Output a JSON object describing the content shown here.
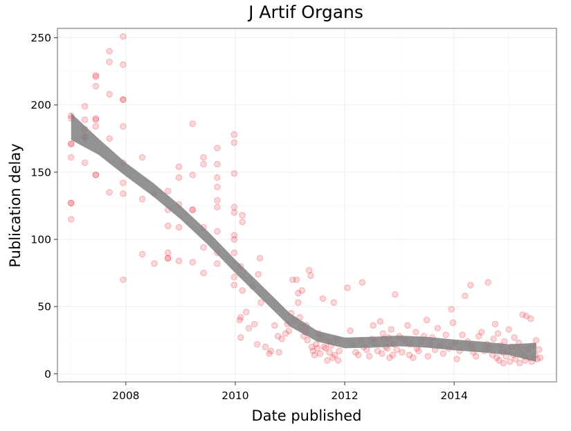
{
  "chart_data": {
    "type": "scatter",
    "title": "J Artif Organs",
    "xlabel": "Date published",
    "ylabel": "Publication delay",
    "xlim": [
      2006.75,
      2015.87
    ],
    "ylim": [
      -6,
      257
    ],
    "x_ticks": [
      2008,
      2010,
      2012,
      2014
    ],
    "y_ticks": [
      0,
      50,
      100,
      150,
      200,
      250
    ],
    "grid": true,
    "point_color": "#e8202a",
    "point_opacity": 0.18,
    "smooth_color": "#7f7f7f",
    "series": [
      {
        "points": [
          [
            2007.0,
            192
          ],
          [
            2007.0,
            190
          ],
          [
            2007.0,
            171
          ],
          [
            2007.0,
            171
          ],
          [
            2007.0,
            161
          ],
          [
            2007.0,
            127
          ],
          [
            2007.0,
            127
          ],
          [
            2007.0,
            115
          ],
          [
            2007.25,
            199
          ],
          [
            2007.25,
            189
          ],
          [
            2007.25,
            182
          ],
          [
            2007.25,
            176
          ],
          [
            2007.25,
            176
          ],
          [
            2007.25,
            157
          ],
          [
            2007.45,
            222
          ],
          [
            2007.45,
            221
          ],
          [
            2007.45,
            214
          ],
          [
            2007.45,
            190
          ],
          [
            2007.45,
            189
          ],
          [
            2007.45,
            184
          ],
          [
            2007.45,
            148
          ],
          [
            2007.45,
            148
          ],
          [
            2007.7,
            240
          ],
          [
            2007.7,
            232
          ],
          [
            2007.7,
            208
          ],
          [
            2007.7,
            175
          ],
          [
            2007.7,
            135
          ],
          [
            2007.95,
            251
          ],
          [
            2007.95,
            230
          ],
          [
            2007.95,
            204
          ],
          [
            2007.95,
            204
          ],
          [
            2007.95,
            184
          ],
          [
            2007.95,
            157
          ],
          [
            2007.95,
            142
          ],
          [
            2007.95,
            134
          ],
          [
            2007.95,
            70
          ],
          [
            2008.3,
            161
          ],
          [
            2008.3,
            130
          ],
          [
            2008.3,
            89
          ],
          [
            2008.52,
            134
          ],
          [
            2008.52,
            82
          ],
          [
            2008.77,
            136
          ],
          [
            2008.77,
            122
          ],
          [
            2008.77,
            110
          ],
          [
            2008.77,
            90
          ],
          [
            2008.77,
            86
          ],
          [
            2008.77,
            86
          ],
          [
            2008.97,
            154
          ],
          [
            2008.97,
            146
          ],
          [
            2008.97,
            126
          ],
          [
            2008.97,
            109
          ],
          [
            2008.97,
            84
          ],
          [
            2009.22,
            186
          ],
          [
            2009.22,
            148
          ],
          [
            2009.22,
            122
          ],
          [
            2009.22,
            122
          ],
          [
            2009.22,
            83
          ],
          [
            2009.42,
            161
          ],
          [
            2009.42,
            156
          ],
          [
            2009.42,
            109
          ],
          [
            2009.42,
            94
          ],
          [
            2009.42,
            75
          ],
          [
            2009.67,
            168
          ],
          [
            2009.67,
            156
          ],
          [
            2009.67,
            146
          ],
          [
            2009.67,
            139
          ],
          [
            2009.67,
            129
          ],
          [
            2009.67,
            124
          ],
          [
            2009.67,
            106
          ],
          [
            2009.67,
            90
          ],
          [
            2009.67,
            82
          ],
          [
            2009.98,
            178
          ],
          [
            2009.98,
            172
          ],
          [
            2009.98,
            149
          ],
          [
            2009.98,
            124
          ],
          [
            2009.98,
            120
          ],
          [
            2009.98,
            103
          ],
          [
            2009.98,
            100
          ],
          [
            2009.98,
            90
          ],
          [
            2009.98,
            72
          ],
          [
            2009.98,
            66
          ],
          [
            2010.1,
            80
          ],
          [
            2010.13,
            118
          ],
          [
            2010.13,
            113
          ],
          [
            2010.13,
            62
          ],
          [
            2010.1,
            42
          ],
          [
            2010.08,
            40
          ],
          [
            2010.1,
            27
          ],
          [
            2010.25,
            34
          ],
          [
            2010.2,
            46
          ],
          [
            2010.35,
            37
          ],
          [
            2010.32,
            65
          ],
          [
            2010.45,
            86
          ],
          [
            2010.42,
            74
          ],
          [
            2010.47,
            53
          ],
          [
            2010.4,
            22
          ],
          [
            2010.55,
            20
          ],
          [
            2010.65,
            17
          ],
          [
            2010.62,
            15
          ],
          [
            2010.72,
            36
          ],
          [
            2010.78,
            28
          ],
          [
            2010.8,
            16
          ],
          [
            2010.85,
            26
          ],
          [
            2010.92,
            30
          ],
          [
            2010.95,
            37
          ],
          [
            2010.98,
            32
          ],
          [
            2011.02,
            45
          ],
          [
            2011.05,
            70
          ],
          [
            2011.08,
            40
          ],
          [
            2011.12,
            70
          ],
          [
            2011.15,
            60
          ],
          [
            2011.15,
            53
          ],
          [
            2011.18,
            42
          ],
          [
            2011.2,
            35
          ],
          [
            2011.22,
            62
          ],
          [
            2011.25,
            28
          ],
          [
            2011.28,
            31
          ],
          [
            2011.3,
            36
          ],
          [
            2011.32,
            25
          ],
          [
            2011.35,
            77
          ],
          [
            2011.38,
            73
          ],
          [
            2011.4,
            20
          ],
          [
            2011.42,
            17
          ],
          [
            2011.45,
            14
          ],
          [
            2011.48,
            22
          ],
          [
            2011.5,
            19
          ],
          [
            2011.52,
            30
          ],
          [
            2011.55,
            15
          ],
          [
            2011.58,
            27
          ],
          [
            2011.6,
            56
          ],
          [
            2011.62,
            20
          ],
          [
            2011.65,
            19
          ],
          [
            2011.68,
            10
          ],
          [
            2011.7,
            24
          ],
          [
            2011.72,
            16
          ],
          [
            2011.75,
            21
          ],
          [
            2011.78,
            12
          ],
          [
            2011.8,
            53
          ],
          [
            2011.82,
            14
          ],
          [
            2011.85,
            26
          ],
          [
            2011.88,
            10
          ],
          [
            2011.9,
            17
          ],
          [
            2012.05,
            64
          ],
          [
            2012.1,
            32
          ],
          [
            2012.15,
            22
          ],
          [
            2012.2,
            16
          ],
          [
            2012.25,
            14
          ],
          [
            2012.3,
            25
          ],
          [
            2012.32,
            68
          ],
          [
            2012.35,
            20
          ],
          [
            2012.4,
            18
          ],
          [
            2012.45,
            13
          ],
          [
            2012.5,
            26
          ],
          [
            2012.52,
            36
          ],
          [
            2012.55,
            23
          ],
          [
            2012.6,
            17
          ],
          [
            2012.65,
            39
          ],
          [
            2012.68,
            15
          ],
          [
            2012.7,
            30
          ],
          [
            2012.72,
            26
          ],
          [
            2012.75,
            20
          ],
          [
            2012.78,
            19
          ],
          [
            2012.8,
            27
          ],
          [
            2012.82,
            12
          ],
          [
            2012.85,
            33
          ],
          [
            2012.88,
            14
          ],
          [
            2012.9,
            22
          ],
          [
            2012.92,
            59
          ],
          [
            2012.95,
            18
          ],
          [
            2013.0,
            28
          ],
          [
            2013.05,
            16
          ],
          [
            2013.1,
            25
          ],
          [
            2013.15,
            36
          ],
          [
            2013.18,
            14
          ],
          [
            2013.2,
            22
          ],
          [
            2013.25,
            12
          ],
          [
            2013.3,
            31
          ],
          [
            2013.32,
            19
          ],
          [
            2013.35,
            17
          ],
          [
            2013.4,
            24
          ],
          [
            2013.45,
            28
          ],
          [
            2013.5,
            40
          ],
          [
            2013.52,
            13
          ],
          [
            2013.55,
            22
          ],
          [
            2013.6,
            27
          ],
          [
            2013.65,
            18
          ],
          [
            2013.7,
            34
          ],
          [
            2013.75,
            21
          ],
          [
            2013.8,
            15
          ],
          [
            2013.85,
            29
          ],
          [
            2013.9,
            19
          ],
          [
            2013.95,
            48
          ],
          [
            2013.98,
            38
          ],
          [
            2014.02,
            23
          ],
          [
            2014.05,
            11
          ],
          [
            2014.1,
            17
          ],
          [
            2014.15,
            29
          ],
          [
            2014.2,
            58
          ],
          [
            2014.25,
            24
          ],
          [
            2014.3,
            66
          ],
          [
            2014.32,
            20
          ],
          [
            2014.35,
            16
          ],
          [
            2014.4,
            13
          ],
          [
            2014.45,
            28
          ],
          [
            2014.5,
            31
          ],
          [
            2014.55,
            17
          ],
          [
            2014.6,
            22
          ],
          [
            2014.62,
            68
          ],
          [
            2014.65,
            19
          ],
          [
            2014.7,
            14
          ],
          [
            2014.72,
            26
          ],
          [
            2014.75,
            37
          ],
          [
            2014.78,
            12
          ],
          [
            2014.8,
            30
          ],
          [
            2014.82,
            10
          ],
          [
            2014.85,
            21
          ],
          [
            2014.88,
            16
          ],
          [
            2014.9,
            8
          ],
          [
            2014.92,
            24
          ],
          [
            2014.95,
            13
          ],
          [
            2014.98,
            17
          ],
          [
            2015.0,
            33
          ],
          [
            2015.02,
            9
          ],
          [
            2015.05,
            20
          ],
          [
            2015.08,
            14
          ],
          [
            2015.1,
            27
          ],
          [
            2015.12,
            11
          ],
          [
            2015.15,
            19
          ],
          [
            2015.18,
            23
          ],
          [
            2015.2,
            8
          ],
          [
            2015.22,
            15
          ],
          [
            2015.25,
            44
          ],
          [
            2015.28,
            13
          ],
          [
            2015.3,
            10
          ],
          [
            2015.32,
            43
          ],
          [
            2015.35,
            18
          ],
          [
            2015.38,
            12
          ],
          [
            2015.4,
            41
          ],
          [
            2015.42,
            9
          ],
          [
            2015.45,
            21
          ],
          [
            2015.48,
            14
          ],
          [
            2015.5,
            25
          ],
          [
            2015.52,
            11
          ],
          [
            2015.55,
            18
          ],
          [
            2015.57,
            12
          ]
        ]
      },
      {
        "smooth": [
          [
            2007.0,
            184
          ],
          [
            2007.5,
            169
          ],
          [
            2008.0,
            152
          ],
          [
            2008.5,
            137
          ],
          [
            2009.0,
            120
          ],
          [
            2009.5,
            101
          ],
          [
            2010.0,
            80
          ],
          [
            2010.5,
            60
          ],
          [
            2011.0,
            40
          ],
          [
            2011.5,
            28
          ],
          [
            2012.0,
            23
          ],
          [
            2012.5,
            23.5
          ],
          [
            2013.0,
            24.5
          ],
          [
            2013.5,
            23.5
          ],
          [
            2014.0,
            21.5
          ],
          [
            2014.5,
            20
          ],
          [
            2015.0,
            18
          ],
          [
            2015.5,
            16
          ]
        ],
        "band_halfwidth": [
          10,
          6,
          5,
          5,
          5,
          5,
          5,
          5,
          5,
          4,
          4,
          4,
          4,
          4,
          4,
          4,
          4,
          7
        ]
      }
    ]
  }
}
